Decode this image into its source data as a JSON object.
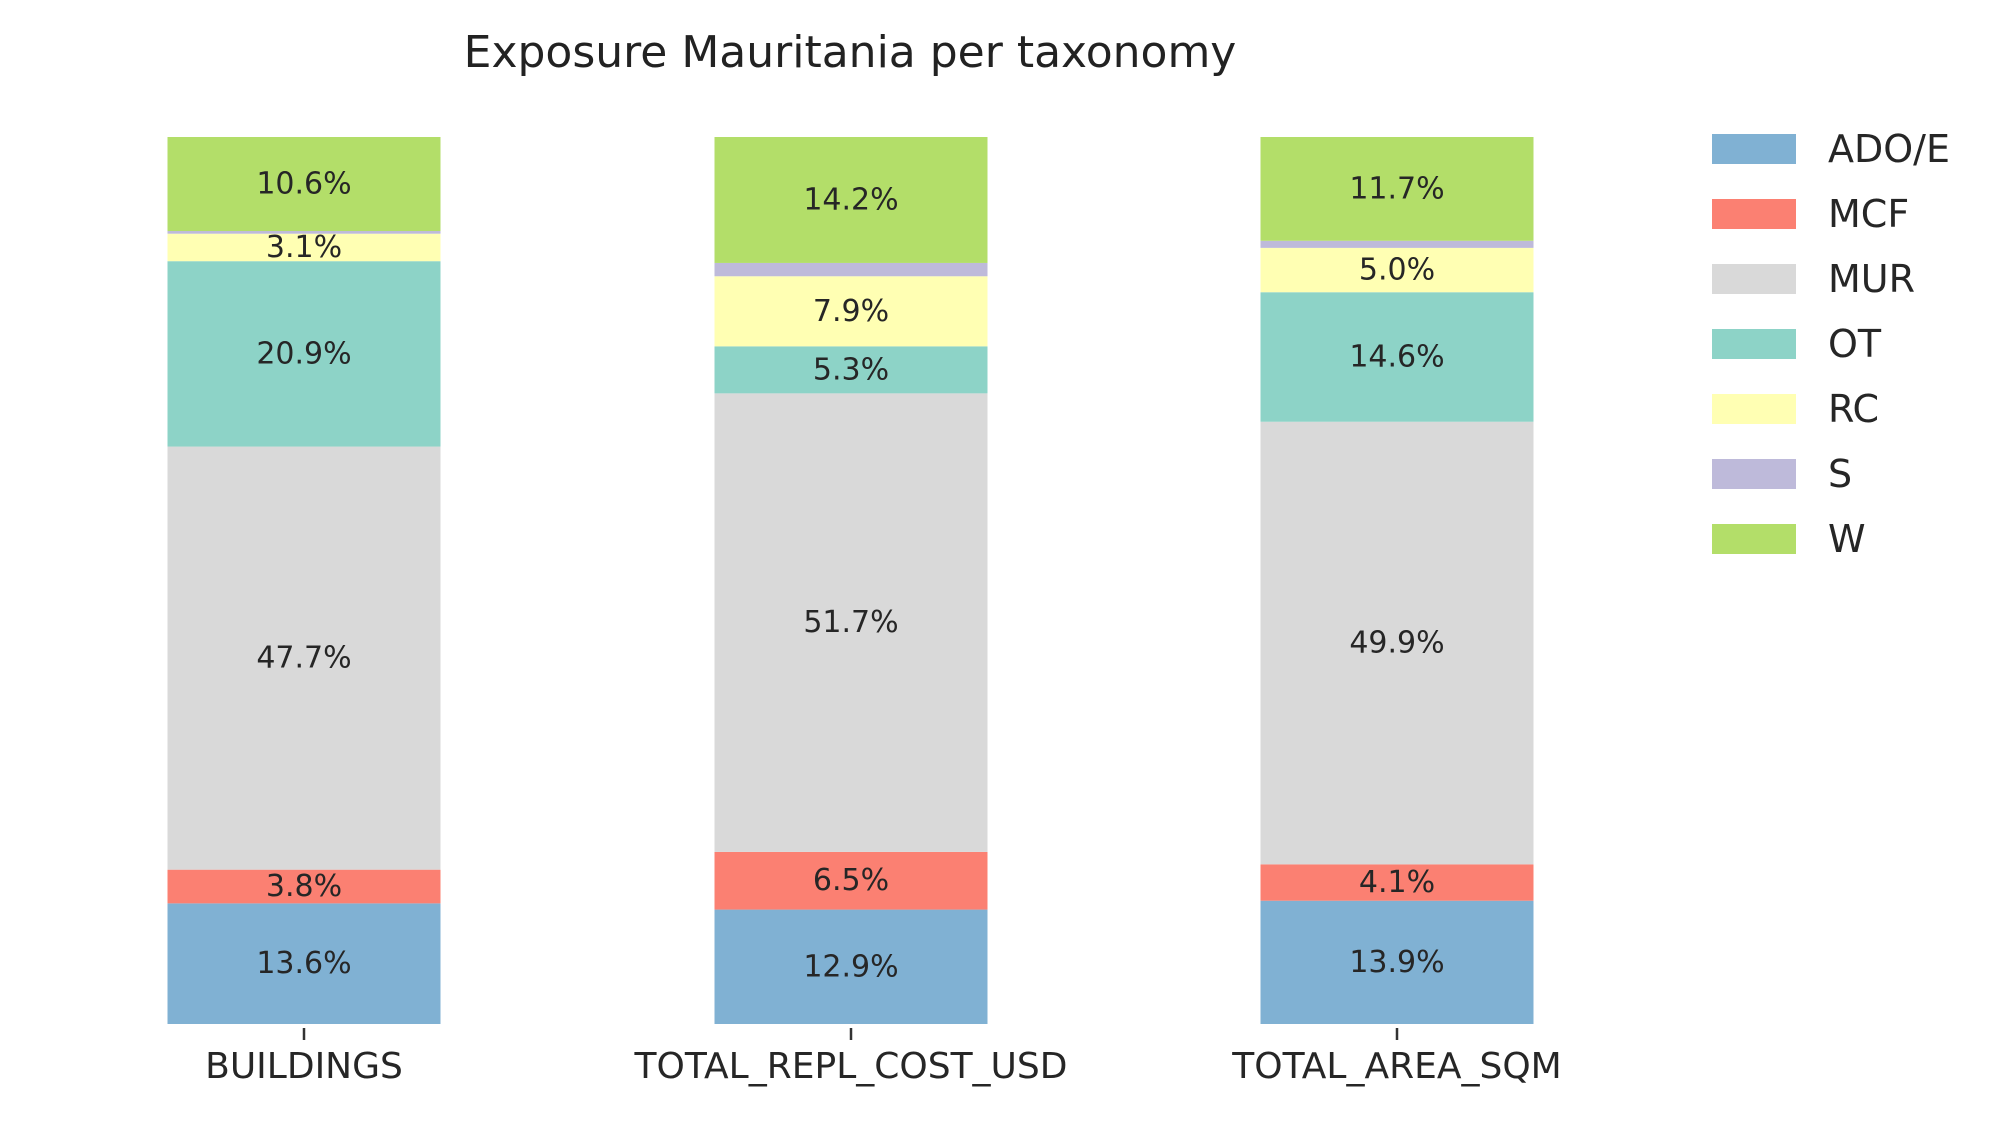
{
  "chart_data": {
    "type": "bar",
    "stacked": true,
    "normalized": true,
    "title": "Exposure Mauritania per taxonomy",
    "xlabel": "",
    "ylabel": "",
    "ylim": [
      0,
      100
    ],
    "grid": false,
    "legend_position": "right",
    "categories": [
      "BUILDINGS",
      "TOTAL_REPL_COST_USD",
      "TOTAL_AREA_SQM"
    ],
    "series": [
      {
        "name": "ADO/E",
        "color": "#80b1d3",
        "values": [
          13.6,
          12.9,
          13.9
        ],
        "labels": [
          "13.6%",
          "12.9%",
          "13.9%"
        ]
      },
      {
        "name": "MCF",
        "color": "#fb8072",
        "values": [
          3.8,
          6.5,
          4.1
        ],
        "labels": [
          "3.8%",
          "6.5%",
          "4.1%"
        ]
      },
      {
        "name": "MUR",
        "color": "#d9d9d9",
        "values": [
          47.7,
          51.7,
          49.9
        ],
        "labels": [
          "47.7%",
          "51.7%",
          "49.9%"
        ]
      },
      {
        "name": "OT",
        "color": "#8dd3c7",
        "values": [
          20.9,
          5.3,
          14.6
        ],
        "labels": [
          "20.9%",
          "5.3%",
          "14.6%"
        ]
      },
      {
        "name": "RC",
        "color": "#ffffb3",
        "values": [
          3.1,
          7.9,
          5.0
        ],
        "labels": [
          "3.1%",
          "7.9%",
          "5.0%"
        ]
      },
      {
        "name": "S",
        "color": "#bebada",
        "values": [
          0.3,
          1.5,
          0.8
        ],
        "labels": [
          "",
          "",
          ""
        ]
      },
      {
        "name": "W",
        "color": "#b3de69",
        "values": [
          10.6,
          14.2,
          11.7
        ],
        "labels": [
          "10.6%",
          "14.2%",
          "11.7%"
        ]
      }
    ]
  }
}
